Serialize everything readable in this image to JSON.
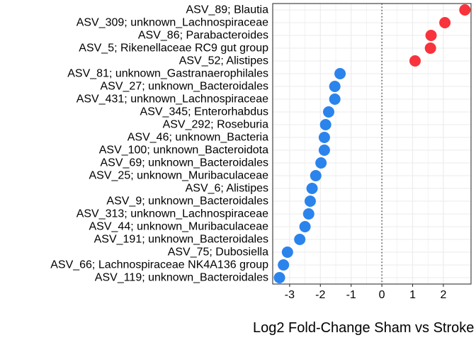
{
  "chart_data": {
    "type": "scatter",
    "xlabel": "Log2 Fold-Change Sham vs Stroke",
    "xlim": [
      -3.55,
      2.9
    ],
    "xticks": [
      -3,
      -2,
      -1,
      0,
      1,
      2
    ],
    "xtick_labels": [
      "-3",
      "-2",
      "-1",
      "0",
      "1",
      "2"
    ],
    "reference_line": 0,
    "grid": true,
    "legend": "none",
    "colors": {
      "positive": "#F8333C",
      "negative": "#2B84EC",
      "grid": "#EBEBEB",
      "panel_border": "#333333"
    },
    "points": [
      {
        "label": "ASV_89; Blautia",
        "value": 2.7
      },
      {
        "label": "ASV_309; unknown_Lachnospiraceae",
        "value": 2.05
      },
      {
        "label": "ASV_86; Parabacteroides",
        "value": 1.6
      },
      {
        "label": "ASV_5; Rikenellaceae RC9 gut group",
        "value": 1.58
      },
      {
        "label": "ASV_52; Alistipes",
        "value": 1.08
      },
      {
        "label": "ASV_81; unknown_Gastranaerophilales",
        "value": -1.36
      },
      {
        "label": "ASV_27; unknown_Bacteroidales",
        "value": -1.53
      },
      {
        "label": "ASV_431; unknown_Lachnospiraceae",
        "value": -1.53
      },
      {
        "label": "ASV_345; Enterorhabdus",
        "value": -1.73
      },
      {
        "label": "ASV_292; Roseburia",
        "value": -1.83
      },
      {
        "label": "ASV_46; unknown_Bacteria",
        "value": -1.87
      },
      {
        "label": "ASV_100; unknown_Bacteroidota",
        "value": -1.87
      },
      {
        "label": "ASV_69; unknown_Bacteroidales",
        "value": -1.98
      },
      {
        "label": "ASV_25; unknown_Muribaculaceae",
        "value": -2.15
      },
      {
        "label": "ASV_6; Alistipes",
        "value": -2.27
      },
      {
        "label": "ASV_9; unknown_Bacteroidales",
        "value": -2.33
      },
      {
        "label": "ASV_313; unknown_Lachnospiraceae",
        "value": -2.38
      },
      {
        "label": "ASV_44; unknown_Muribaculaceae",
        "value": -2.5
      },
      {
        "label": "ASV_191; unknown_Bacteroidales",
        "value": -2.67
      },
      {
        "label": "ASV_75; Dubosiella",
        "value": -3.07
      },
      {
        "label": "ASV_66; Lachnospiraceae NK4A136 group",
        "value": -3.2
      },
      {
        "label": "ASV_119; unknown_Bacteroidales",
        "value": -3.33
      }
    ]
  }
}
